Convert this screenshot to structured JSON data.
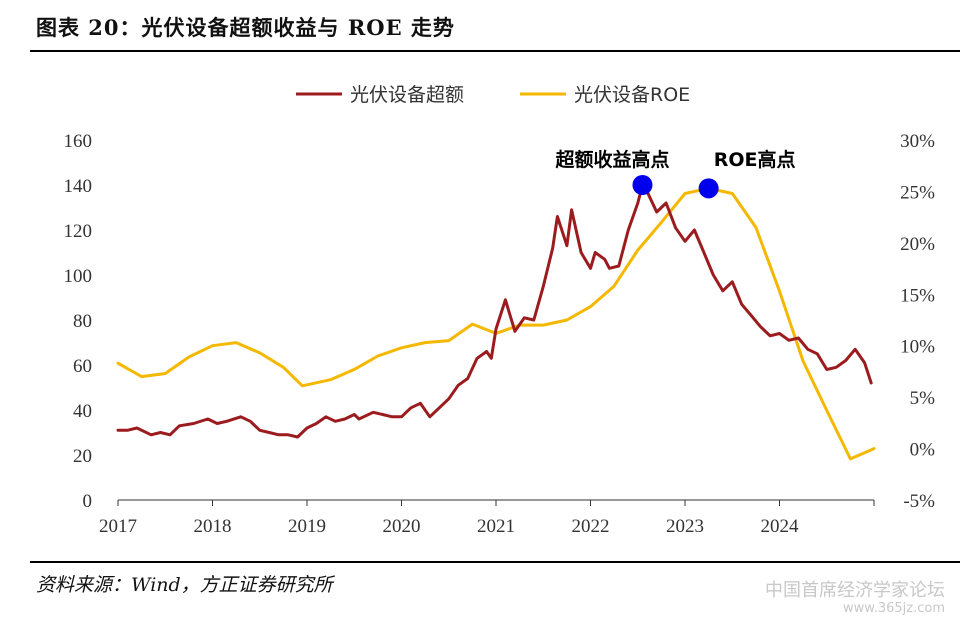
{
  "header": {
    "title": "图表 20：光伏设备超额收益与 ROE 走势"
  },
  "footer": {
    "source": "资料来源：Wind，方正证券研究所",
    "watermark": "中国首席经济学家论坛",
    "watermark_url": "www.365jz.com"
  },
  "chart_data": {
    "type": "line",
    "x_ticks": [
      "2017",
      "2018",
      "2019",
      "2020",
      "2021",
      "2022",
      "2023",
      "2024"
    ],
    "ylim_left": [
      0,
      160
    ],
    "yticks_left": [
      "0",
      "20",
      "40",
      "60",
      "80",
      "100",
      "120",
      "140",
      "160"
    ],
    "ylim_right": [
      -5,
      30
    ],
    "yticks_right": [
      "-5%",
      "0%",
      "5%",
      "10%",
      "15%",
      "20%",
      "25%",
      "30%"
    ],
    "legend_position": "top-center",
    "grid": false,
    "series": [
      {
        "name": "光伏设备超额",
        "axis": "left",
        "color": "#9b1b1e",
        "points": [
          [
            2017.0,
            31
          ],
          [
            2017.1,
            31
          ],
          [
            2017.2,
            32
          ],
          [
            2017.35,
            29
          ],
          [
            2017.45,
            30
          ],
          [
            2017.55,
            29
          ],
          [
            2017.65,
            33
          ],
          [
            2017.8,
            34
          ],
          [
            2017.95,
            36
          ],
          [
            2018.05,
            34
          ],
          [
            2018.15,
            35
          ],
          [
            2018.3,
            37
          ],
          [
            2018.4,
            35
          ],
          [
            2018.5,
            31
          ],
          [
            2018.6,
            30
          ],
          [
            2018.7,
            29
          ],
          [
            2018.8,
            29
          ],
          [
            2018.9,
            28
          ],
          [
            2019.0,
            32
          ],
          [
            2019.1,
            34
          ],
          [
            2019.2,
            37
          ],
          [
            2019.3,
            35
          ],
          [
            2019.4,
            36
          ],
          [
            2019.5,
            38
          ],
          [
            2019.55,
            36
          ],
          [
            2019.7,
            39
          ],
          [
            2019.8,
            38
          ],
          [
            2019.9,
            37
          ],
          [
            2020.0,
            37
          ],
          [
            2020.1,
            41
          ],
          [
            2020.2,
            43
          ],
          [
            2020.3,
            37
          ],
          [
            2020.4,
            41
          ],
          [
            2020.5,
            45
          ],
          [
            2020.6,
            51
          ],
          [
            2020.7,
            54
          ],
          [
            2020.8,
            63
          ],
          [
            2020.9,
            66
          ],
          [
            2020.95,
            63
          ],
          [
            2021.0,
            76
          ],
          [
            2021.1,
            89
          ],
          [
            2021.2,
            75
          ],
          [
            2021.3,
            81
          ],
          [
            2021.4,
            80
          ],
          [
            2021.5,
            95
          ],
          [
            2021.6,
            112
          ],
          [
            2021.65,
            126
          ],
          [
            2021.75,
            113
          ],
          [
            2021.8,
            129
          ],
          [
            2021.9,
            110
          ],
          [
            2022.0,
            103
          ],
          [
            2022.05,
            110
          ],
          [
            2022.15,
            107
          ],
          [
            2022.2,
            103
          ],
          [
            2022.3,
            104
          ],
          [
            2022.4,
            120
          ],
          [
            2022.5,
            132
          ],
          [
            2022.55,
            140
          ],
          [
            2022.6,
            137
          ],
          [
            2022.7,
            128
          ],
          [
            2022.8,
            132
          ],
          [
            2022.9,
            121
          ],
          [
            2023.0,
            115
          ],
          [
            2023.1,
            120
          ],
          [
            2023.2,
            110
          ],
          [
            2023.3,
            100
          ],
          [
            2023.4,
            93
          ],
          [
            2023.5,
            97
          ],
          [
            2023.6,
            87
          ],
          [
            2023.7,
            82
          ],
          [
            2023.8,
            77
          ],
          [
            2023.9,
            73
          ],
          [
            2024.0,
            74
          ],
          [
            2024.1,
            71
          ],
          [
            2024.2,
            72
          ],
          [
            2024.3,
            67
          ],
          [
            2024.4,
            65
          ],
          [
            2024.5,
            58
          ],
          [
            2024.6,
            59
          ],
          [
            2024.7,
            62
          ],
          [
            2024.8,
            67
          ],
          [
            2024.9,
            61
          ],
          [
            2024.97,
            52
          ]
        ]
      },
      {
        "name": "光伏设备ROE",
        "axis": "right",
        "color": "#f5b800",
        "points": [
          [
            2017.0,
            8.3
          ],
          [
            2017.25,
            7.0
          ],
          [
            2017.5,
            7.3
          ],
          [
            2017.75,
            8.9
          ],
          [
            2018.0,
            10.0
          ],
          [
            2018.25,
            10.3
          ],
          [
            2018.5,
            9.3
          ],
          [
            2018.75,
            7.9
          ],
          [
            2018.95,
            6.1
          ],
          [
            2019.25,
            6.7
          ],
          [
            2019.5,
            7.7
          ],
          [
            2019.75,
            9.0
          ],
          [
            2020.0,
            9.8
          ],
          [
            2020.25,
            10.3
          ],
          [
            2020.5,
            10.5
          ],
          [
            2020.75,
            12.1
          ],
          [
            2021.0,
            11.2
          ],
          [
            2021.25,
            12.0
          ],
          [
            2021.5,
            12.0
          ],
          [
            2021.75,
            12.5
          ],
          [
            2022.0,
            13.8
          ],
          [
            2022.25,
            15.8
          ],
          [
            2022.5,
            19.3
          ],
          [
            2022.75,
            22.0
          ],
          [
            2023.0,
            24.8
          ],
          [
            2023.25,
            25.3
          ],
          [
            2023.5,
            24.8
          ],
          [
            2023.75,
            21.5
          ],
          [
            2024.0,
            15.3
          ],
          [
            2024.25,
            8.5
          ],
          [
            2024.5,
            3.7
          ],
          [
            2024.75,
            -1.0
          ],
          [
            2025.0,
            0.0
          ]
        ]
      }
    ],
    "annotations": [
      {
        "label": "超额收益高点",
        "x": 2022.55,
        "y": 140,
        "axis": "left",
        "color": "#0000ee"
      },
      {
        "label": "ROE高点",
        "x": 2023.25,
        "y": 25.3,
        "axis": "right",
        "color": "#0000ee"
      }
    ]
  }
}
